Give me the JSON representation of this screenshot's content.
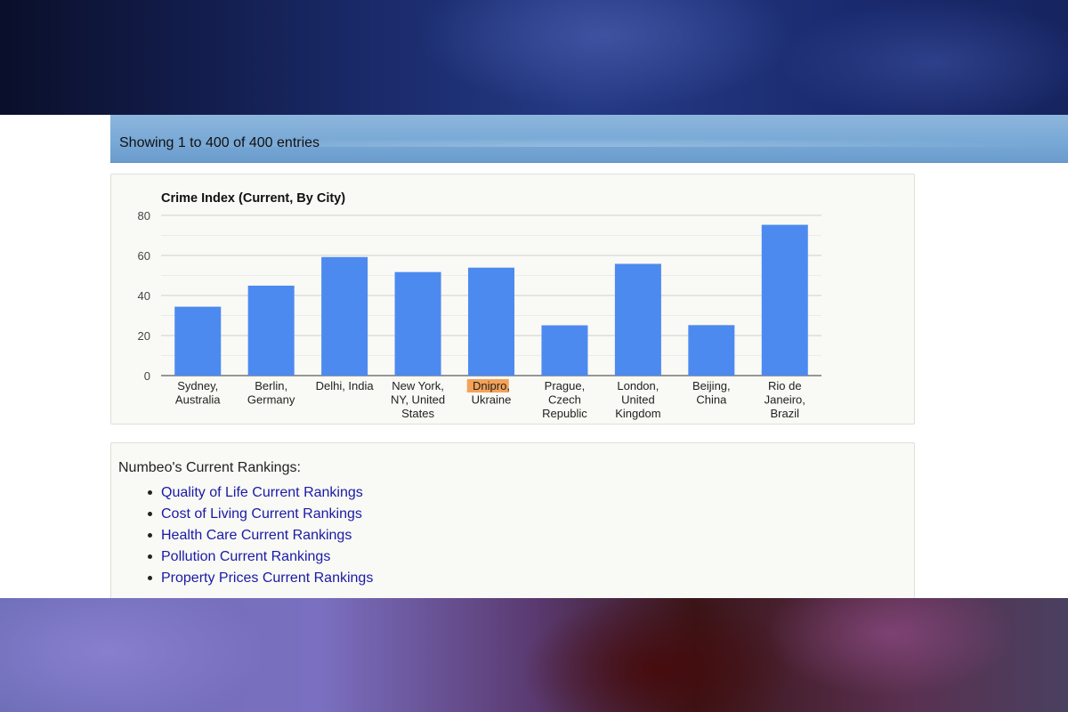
{
  "info_bar": {
    "text": "Showing 1 to 400 of 400 entries"
  },
  "chart_data": {
    "type": "bar",
    "title": "Crime Index (Current, By City)",
    "categories": [
      [
        "Sydney,",
        "Australia"
      ],
      [
        "Berlin,",
        "Germany"
      ],
      [
        "Delhi, India"
      ],
      [
        "New York,",
        "NY, United",
        "States"
      ],
      [
        "Dnipro,",
        "Ukraine"
      ],
      [
        "Prague,",
        "Czech",
        "Republic"
      ],
      [
        "London,",
        "United",
        "Kingdom"
      ],
      [
        "Beijing,",
        "China"
      ],
      [
        "Rio de",
        "Janeiro,",
        "Brazil"
      ]
    ],
    "values": [
      34.4,
      44.9,
      59.2,
      51.7,
      53.9,
      25.1,
      55.8,
      25.2,
      75.3
    ],
    "ylim": [
      0,
      80
    ],
    "yticks": [
      0,
      20,
      40,
      60,
      80
    ],
    "bar_color": "#4d8af0",
    "highlight": {
      "text": "Dnipro",
      "color": "#f4a259"
    },
    "grid": true
  },
  "rankings": {
    "title": "Numbeo's Current Rankings:",
    "links": [
      "Quality of Life Current Rankings",
      "Cost of Living Current Rankings",
      "Health Care Current Rankings",
      "Pollution Current Rankings",
      "Property Prices Current Rankings"
    ]
  }
}
